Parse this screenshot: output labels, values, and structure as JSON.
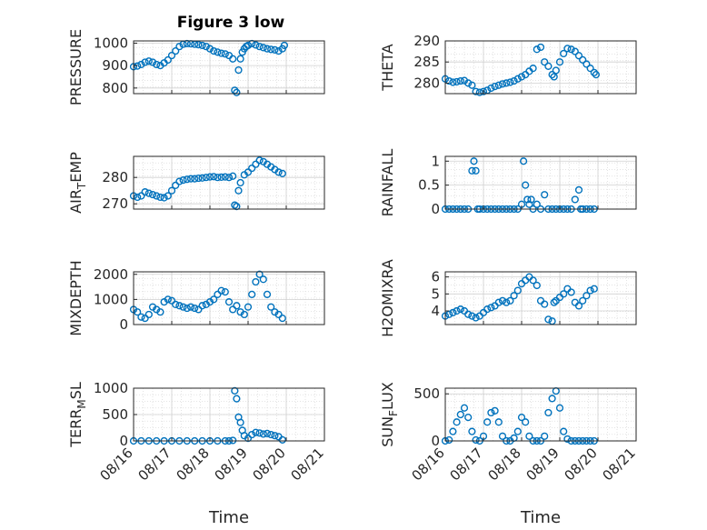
{
  "figure_title": "Figure 3 low",
  "x_axis_label": "Time",
  "x_tick_labels": [
    "08/16",
    "08/17",
    "08/18",
    "08/19",
    "08/20",
    "08/21"
  ],
  "marker_color": "#0072BD",
  "chart_data": [
    {
      "type": "scatter",
      "ylabel": "PRESSURE",
      "ylim": [
        775,
        1010
      ],
      "yticks": [
        800,
        900,
        1000
      ],
      "xlim": [
        0,
        5
      ],
      "grid": true,
      "x": [
        0,
        0.1,
        0.2,
        0.3,
        0.4,
        0.5,
        0.6,
        0.7,
        0.8,
        0.9,
        1.0,
        1.1,
        1.2,
        1.3,
        1.4,
        1.5,
        1.6,
        1.7,
        1.8,
        1.9,
        2.0,
        2.1,
        2.2,
        2.3,
        2.4,
        2.5,
        2.6,
        2.65,
        2.7,
        2.75,
        2.8,
        2.85,
        2.9,
        2.95,
        3.0,
        3.1,
        3.2,
        3.3,
        3.4,
        3.5,
        3.6,
        3.7,
        3.8,
        3.9,
        3.95
      ],
      "values": [
        895,
        898,
        905,
        915,
        920,
        915,
        905,
        900,
        912,
        925,
        945,
        965,
        985,
        995,
        998,
        997,
        995,
        993,
        990,
        985,
        975,
        965,
        960,
        955,
        952,
        945,
        930,
        790,
        780,
        880,
        930,
        960,
        975,
        985,
        990,
        998,
        992,
        985,
        980,
        975,
        972,
        970,
        965,
        975,
        990
      ]
    },
    {
      "type": "scatter",
      "ylabel": "THETA",
      "ylim": [
        277.5,
        290
      ],
      "yticks": [
        280,
        285,
        290
      ],
      "xlim": [
        0,
        5
      ],
      "grid": true,
      "x": [
        0,
        0.1,
        0.2,
        0.3,
        0.4,
        0.5,
        0.6,
        0.7,
        0.8,
        0.9,
        1.0,
        1.1,
        1.2,
        1.3,
        1.4,
        1.5,
        1.6,
        1.7,
        1.8,
        1.9,
        2.0,
        2.1,
        2.2,
        2.3,
        2.4,
        2.5,
        2.6,
        2.7,
        2.8,
        2.85,
        2.9,
        3.0,
        3.1,
        3.2,
        3.3,
        3.4,
        3.5,
        3.6,
        3.7,
        3.8,
        3.9,
        3.95
      ],
      "values": [
        281,
        280.5,
        280.2,
        280.3,
        280.5,
        280.6,
        280,
        279.5,
        278,
        277.8,
        278,
        278.3,
        278.8,
        279.2,
        279.5,
        279.8,
        280,
        280.2,
        280.5,
        281,
        281.5,
        282,
        282.8,
        283.5,
        288,
        288.5,
        285,
        284,
        282,
        281.5,
        283,
        285,
        287,
        288.2,
        288,
        287.5,
        286.5,
        285.5,
        284.5,
        283.5,
        282.5,
        282
      ]
    },
    {
      "type": "scatter",
      "ylabel": "AIR_TEMP",
      "ylim": [
        268,
        288
      ],
      "yticks": [
        270,
        280
      ],
      "xlim": [
        0,
        5
      ],
      "grid": true,
      "x": [
        0,
        0.1,
        0.2,
        0.3,
        0.4,
        0.5,
        0.6,
        0.7,
        0.8,
        0.9,
        1.0,
        1.1,
        1.2,
        1.3,
        1.4,
        1.5,
        1.6,
        1.7,
        1.8,
        1.9,
        2.0,
        2.1,
        2.2,
        2.3,
        2.4,
        2.5,
        2.6,
        2.65,
        2.7,
        2.75,
        2.8,
        2.9,
        3.0,
        3.1,
        3.2,
        3.3,
        3.4,
        3.5,
        3.6,
        3.7,
        3.8,
        3.9
      ],
      "values": [
        273,
        272.5,
        273,
        274.5,
        274,
        273.5,
        273,
        272.5,
        272.3,
        273,
        275,
        277,
        278.5,
        279,
        279.3,
        279.5,
        279.5,
        279.7,
        279.8,
        280,
        280.2,
        280.3,
        280,
        280.1,
        280.2,
        280,
        280.5,
        269.5,
        269,
        275,
        278,
        281,
        282,
        283.5,
        285,
        286.5,
        286,
        285,
        284,
        283,
        282,
        281.5
      ]
    },
    {
      "type": "scatter",
      "ylabel": "RAINFALL",
      "ylim": [
        0,
        1.1
      ],
      "yticks": [
        0,
        0.5,
        1
      ],
      "xlim": [
        0,
        5
      ],
      "grid": true,
      "x": [
        0,
        0.1,
        0.2,
        0.3,
        0.4,
        0.5,
        0.6,
        0.7,
        0.75,
        0.8,
        0.85,
        0.9,
        1.0,
        1.1,
        1.2,
        1.3,
        1.4,
        1.5,
        1.6,
        1.7,
        1.8,
        1.9,
        2.0,
        2.05,
        2.1,
        2.15,
        2.2,
        2.25,
        2.3,
        2.4,
        2.5,
        2.6,
        2.7,
        2.8,
        2.9,
        3.0,
        3.1,
        3.2,
        3.3,
        3.4,
        3.5,
        3.55,
        3.6,
        3.7,
        3.8,
        3.9
      ],
      "values": [
        0,
        0,
        0,
        0,
        0,
        0,
        0,
        0.8,
        1.0,
        0.8,
        0,
        0,
        0,
        0,
        0,
        0,
        0,
        0,
        0,
        0,
        0,
        0,
        0.1,
        1.0,
        0.5,
        0.2,
        0.1,
        0.2,
        0,
        0.1,
        0,
        0.3,
        0,
        0,
        0,
        0,
        0,
        0,
        0,
        0.2,
        0.4,
        0,
        0,
        0,
        0,
        0
      ]
    },
    {
      "type": "scatter",
      "ylabel": "MIXDEPTH",
      "ylim": [
        0,
        2100
      ],
      "yticks": [
        0,
        1000,
        2000
      ],
      "xlim": [
        0,
        5
      ],
      "grid": true,
      "x": [
        0,
        0.1,
        0.2,
        0.3,
        0.4,
        0.5,
        0.6,
        0.7,
        0.8,
        0.9,
        1.0,
        1.1,
        1.2,
        1.3,
        1.4,
        1.5,
        1.6,
        1.7,
        1.8,
        1.9,
        2.0,
        2.1,
        2.2,
        2.3,
        2.4,
        2.5,
        2.6,
        2.7,
        2.8,
        2.9,
        3.0,
        3.1,
        3.2,
        3.3,
        3.4,
        3.5,
        3.6,
        3.7,
        3.8,
        3.9
      ],
      "values": [
        600,
        500,
        300,
        250,
        400,
        700,
        600,
        500,
        900,
        1000,
        950,
        800,
        750,
        700,
        650,
        700,
        650,
        600,
        750,
        800,
        900,
        1000,
        1200,
        1350,
        1300,
        900,
        600,
        750,
        500,
        400,
        700,
        1200,
        1700,
        2000,
        1800,
        1200,
        700,
        500,
        400,
        250
      ]
    },
    {
      "type": "scatter",
      "ylabel": "H2OMIXRA",
      "ylim": [
        3.2,
        6.3
      ],
      "yticks": [
        4,
        5,
        6
      ],
      "xlim": [
        0,
        5
      ],
      "grid": true,
      "x": [
        0,
        0.1,
        0.2,
        0.3,
        0.4,
        0.5,
        0.6,
        0.7,
        0.8,
        0.9,
        1.0,
        1.1,
        1.2,
        1.3,
        1.4,
        1.5,
        1.6,
        1.7,
        1.8,
        1.9,
        2.0,
        2.1,
        2.2,
        2.3,
        2.4,
        2.5,
        2.6,
        2.7,
        2.8,
        2.85,
        2.9,
        3.0,
        3.1,
        3.2,
        3.3,
        3.4,
        3.5,
        3.6,
        3.7,
        3.8,
        3.9
      ],
      "values": [
        3.7,
        3.8,
        3.9,
        4.0,
        4.1,
        4.0,
        3.8,
        3.7,
        3.6,
        3.7,
        3.9,
        4.1,
        4.2,
        4.3,
        4.5,
        4.6,
        4.5,
        4.6,
        4.9,
        5.2,
        5.6,
        5.8,
        6.0,
        5.8,
        5.5,
        4.6,
        4.4,
        3.5,
        3.4,
        4.5,
        4.6,
        4.8,
        5.0,
        5.3,
        5.1,
        4.5,
        4.3,
        4.6,
        4.9,
        5.2,
        5.3
      ]
    },
    {
      "type": "scatter",
      "ylabel": "TERR_MSL",
      "ylim": [
        0,
        1000
      ],
      "yticks": [
        0,
        500,
        1000
      ],
      "xlim": [
        0,
        5
      ],
      "grid": true,
      "x": [
        0,
        0.2,
        0.4,
        0.6,
        0.8,
        1.0,
        1.2,
        1.4,
        1.6,
        1.8,
        2.0,
        2.2,
        2.4,
        2.5,
        2.6,
        2.65,
        2.7,
        2.75,
        2.8,
        2.85,
        2.9,
        3.0,
        3.1,
        3.2,
        3.3,
        3.4,
        3.5,
        3.6,
        3.7,
        3.8,
        3.9
      ],
      "values": [
        0,
        0,
        0,
        0,
        0,
        0,
        0,
        0,
        0,
        0,
        0,
        0,
        0,
        0,
        10,
        950,
        800,
        450,
        350,
        200,
        100,
        50,
        120,
        160,
        150,
        130,
        140,
        120,
        100,
        80,
        20
      ]
    },
    {
      "type": "scatter",
      "ylabel": "SUN_FLUX",
      "ylim": [
        0,
        560
      ],
      "yticks": [
        0,
        500
      ],
      "xlim": [
        0,
        5
      ],
      "grid": true,
      "x": [
        0,
        0.1,
        0.2,
        0.3,
        0.4,
        0.5,
        0.6,
        0.7,
        0.8,
        0.9,
        1.0,
        1.1,
        1.2,
        1.3,
        1.4,
        1.5,
        1.6,
        1.7,
        1.8,
        1.9,
        2.0,
        2.1,
        2.2,
        2.3,
        2.4,
        2.5,
        2.6,
        2.7,
        2.8,
        2.9,
        3.0,
        3.1,
        3.2,
        3.3,
        3.4,
        3.5,
        3.6,
        3.7,
        3.8,
        3.9
      ],
      "values": [
        0,
        10,
        100,
        200,
        280,
        350,
        250,
        100,
        10,
        0,
        50,
        200,
        300,
        320,
        200,
        50,
        0,
        0,
        30,
        100,
        250,
        200,
        50,
        0,
        0,
        0,
        50,
        300,
        450,
        530,
        350,
        100,
        20,
        0,
        0,
        0,
        0,
        0,
        0,
        0
      ]
    }
  ]
}
